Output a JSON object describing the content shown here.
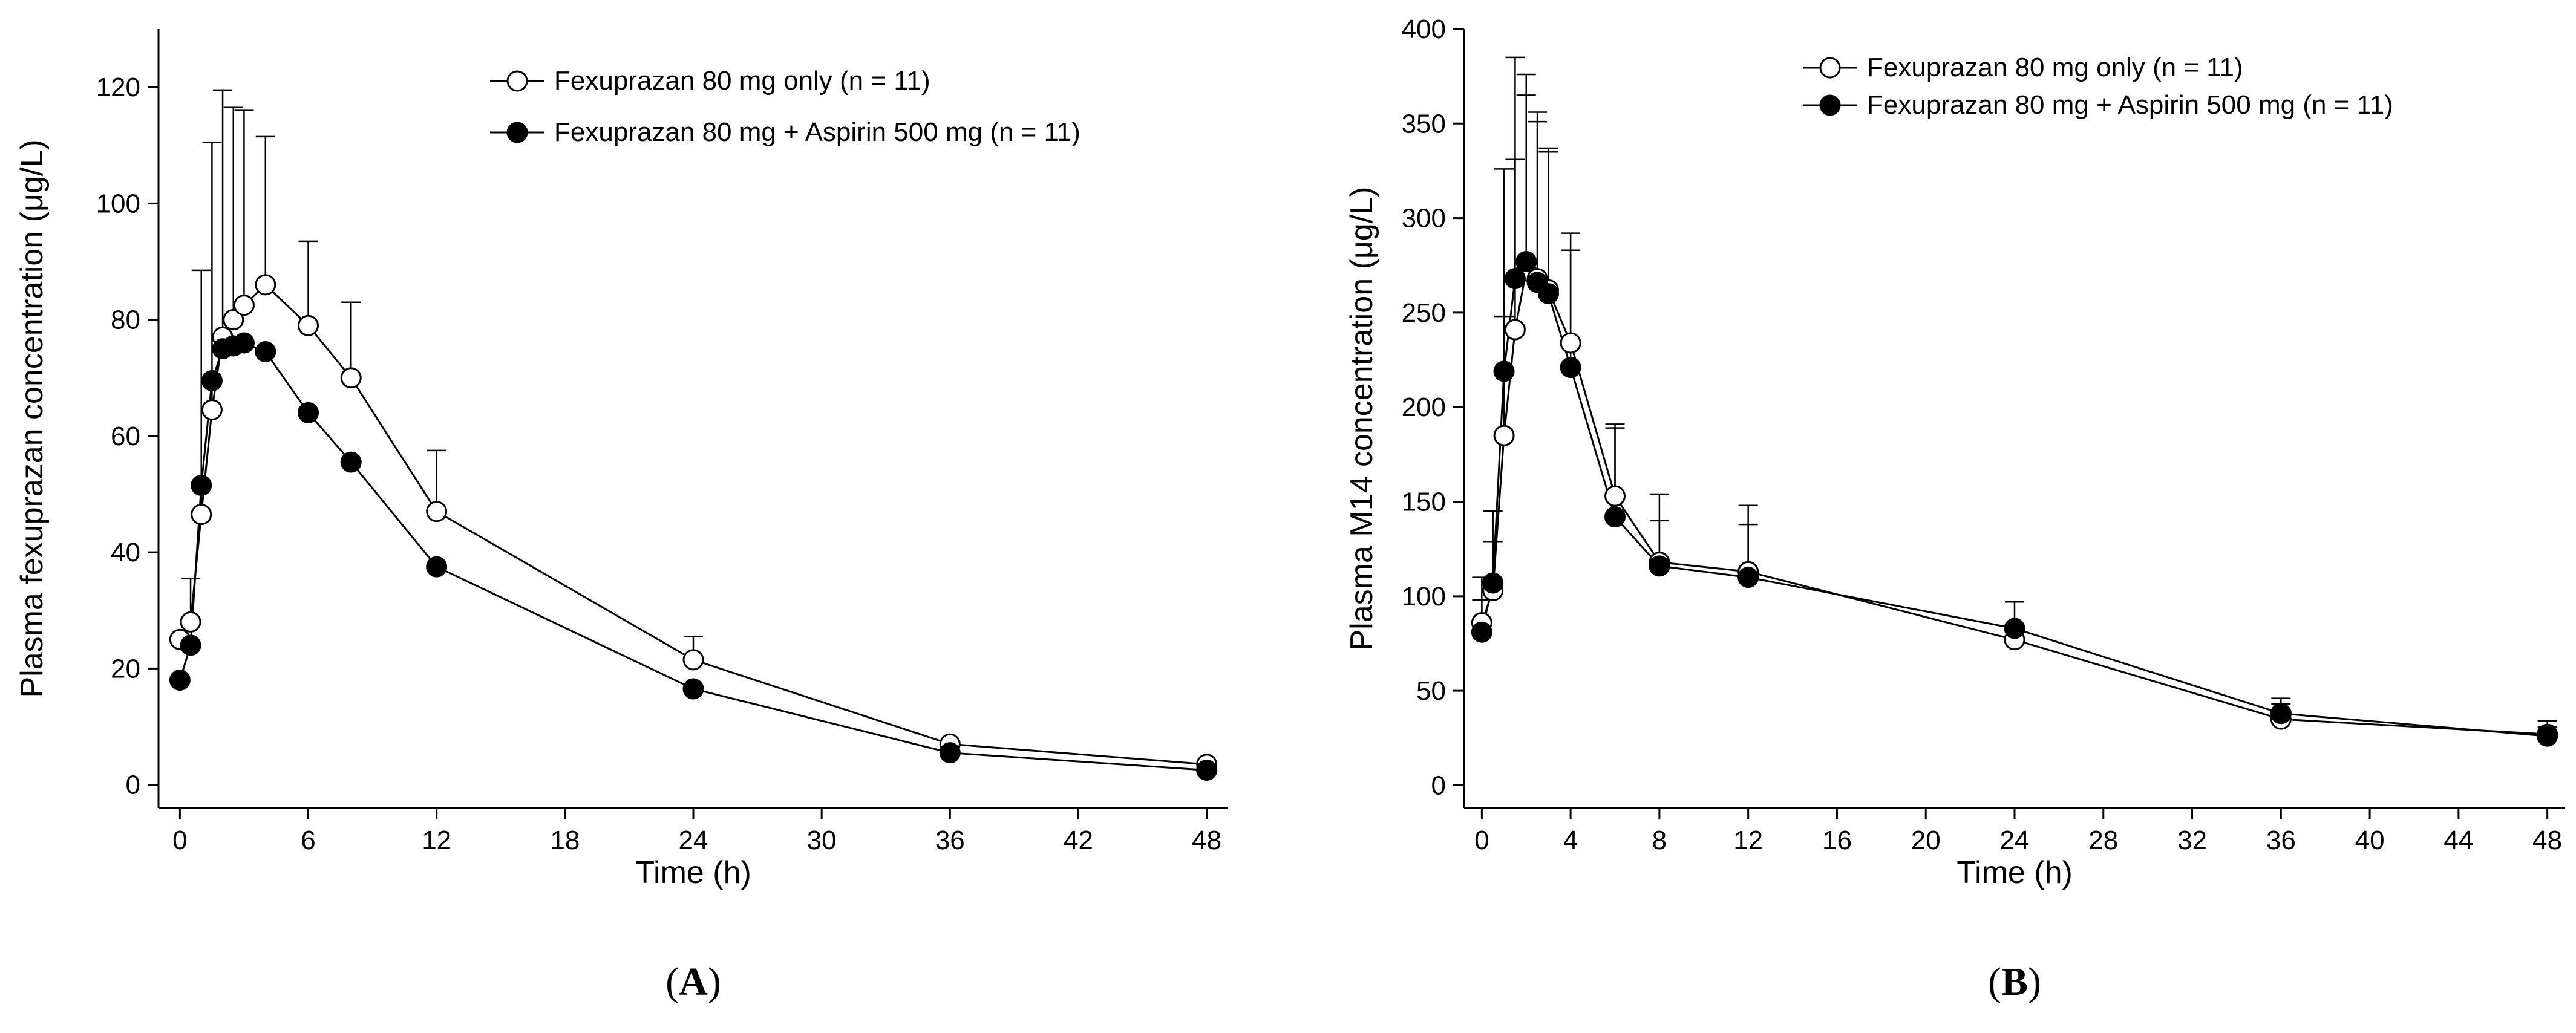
{
  "chart_data": [
    {
      "type": "line",
      "panel_label": "A",
      "xlabel": "Time (h)",
      "ylabel": "Plasma fexuprazan concentration (μg/L)",
      "xlim": [
        -1,
        49
      ],
      "ylim": [
        -4,
        130
      ],
      "xticks": [
        0,
        6,
        12,
        18,
        24,
        30,
        36,
        42,
        48
      ],
      "yticks": [
        0,
        20,
        40,
        60,
        80,
        100,
        120
      ],
      "legend_position": "top-right",
      "series": [
        {
          "name": "Fexuprazan 80 mg only (n = 11)",
          "marker": "open-circle",
          "x": [
            0,
            0.5,
            1,
            1.5,
            2,
            2.5,
            3,
            4,
            6,
            8,
            12,
            24,
            36,
            48
          ],
          "y": [
            25,
            28,
            46.5,
            64.5,
            77,
            80,
            82.5,
            86,
            79,
            70,
            47,
            21.5,
            7,
            3.5
          ],
          "error_upper": [
            null,
            35.5,
            88.5,
            110.5,
            119.5,
            116.5,
            116,
            111.5,
            93.5,
            83,
            57.5,
            25.5,
            null,
            null
          ]
        },
        {
          "name": "Fexuprazan 80 mg + Aspirin 500 mg (n = 11)",
          "marker": "filled-circle",
          "x": [
            0,
            0.5,
            1,
            1.5,
            2,
            2.5,
            3,
            4,
            6,
            8,
            12,
            24,
            36,
            48
          ],
          "y": [
            18,
            24,
            51.5,
            69.5,
            75,
            75.5,
            76,
            74.5,
            64,
            55.5,
            37.5,
            16.5,
            5.5,
            2.5
          ],
          "error_upper": [
            null,
            null,
            null,
            null,
            null,
            null,
            null,
            null,
            null,
            null,
            null,
            null,
            null,
            null
          ]
        }
      ]
    },
    {
      "type": "line",
      "panel_label": "B",
      "xlabel": "Time (h)",
      "ylabel": "Plasma M14 concentration (μg/L)",
      "xlim": [
        -0.8,
        48.8
      ],
      "ylim": [
        -12,
        400
      ],
      "xticks": [
        0,
        4,
        8,
        12,
        16,
        20,
        24,
        28,
        32,
        36,
        40,
        44,
        48
      ],
      "yticks": [
        0,
        50,
        100,
        150,
        200,
        250,
        300,
        350,
        400
      ],
      "legend_position": "top-right",
      "series": [
        {
          "name": "Fexuprazan 80 mg only (n = 11)",
          "marker": "open-circle",
          "x": [
            0,
            0.5,
            1,
            1.5,
            2,
            2.5,
            3,
            4,
            6,
            8,
            12,
            24,
            36,
            48
          ],
          "y": [
            86,
            103,
            185,
            241,
            272,
            268,
            262,
            234,
            153,
            118,
            113,
            77,
            35,
            27
          ],
          "error_upper": [
            110,
            129,
            326,
            385,
            376,
            356,
            337,
            292,
            191,
            154,
            148,
            null,
            46,
            34
          ]
        },
        {
          "name": "Fexuprazan 80 mg + Aspirin 500 mg (n = 11)",
          "marker": "filled-circle",
          "x": [
            0,
            0.5,
            1,
            1.5,
            2,
            2.5,
            3,
            4,
            6,
            8,
            12,
            24,
            36,
            48
          ],
          "y": [
            81,
            107,
            219,
            268,
            277,
            266,
            260,
            221,
            142,
            116,
            110,
            83,
            38,
            26
          ],
          "error_upper": [
            98,
            145,
            248,
            331,
            365,
            351,
            335,
            283,
            189,
            140,
            138,
            97,
            43,
            31
          ]
        }
      ]
    }
  ]
}
